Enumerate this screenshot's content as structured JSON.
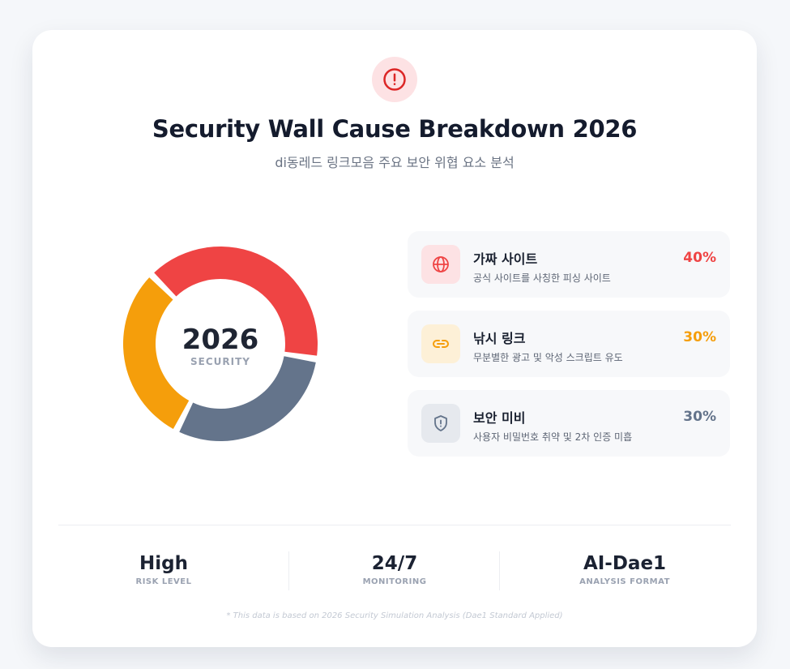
{
  "header": {
    "title": "Security Wall Cause Breakdown 2026",
    "subtitle": "di동레드 링크모음 주요 보안 위협 요소 분석",
    "icon": "alert-circle-icon"
  },
  "chart_data": {
    "type": "pie",
    "center_value": "2026",
    "center_label": "SECURITY",
    "slices": [
      {
        "label": "가짜 사이트",
        "value": 40,
        "color": "#ef4444"
      },
      {
        "label": "낚시 링크",
        "value": 30,
        "color": "#f59e0b"
      },
      {
        "label": "보안 미비",
        "value": 30,
        "color": "#64748b"
      }
    ]
  },
  "legend": {
    "items": [
      {
        "label": "가짜 사이트",
        "desc": "공식 사이트를 사칭한 피싱 사이트",
        "value": "40%",
        "icon": "globe-icon",
        "color": "#ef4444",
        "bg": "#fde2e4"
      },
      {
        "label": "낚시 링크",
        "desc": "무분별한 광고 및 악성 스크립트 유도",
        "value": "30%",
        "icon": "link-icon",
        "color": "#f59e0b",
        "bg": "#fdf0d7"
      },
      {
        "label": "보안 미비",
        "desc": "사용자 비밀번호 취약 및 2차 인증 미흡",
        "value": "30%",
        "icon": "shield-alert-icon",
        "color": "#64748b",
        "bg": "#e6e9ee"
      }
    ]
  },
  "stats": [
    {
      "value": "High",
      "label": "RISK LEVEL"
    },
    {
      "value": "24/7",
      "label": "MONITORING"
    },
    {
      "value": "AI-Dae1",
      "label": "ANALYSIS FORMAT"
    }
  ],
  "footnote": "* This data is based on 2026 Security Simulation Analysis (Dae1 Standard Applied)"
}
